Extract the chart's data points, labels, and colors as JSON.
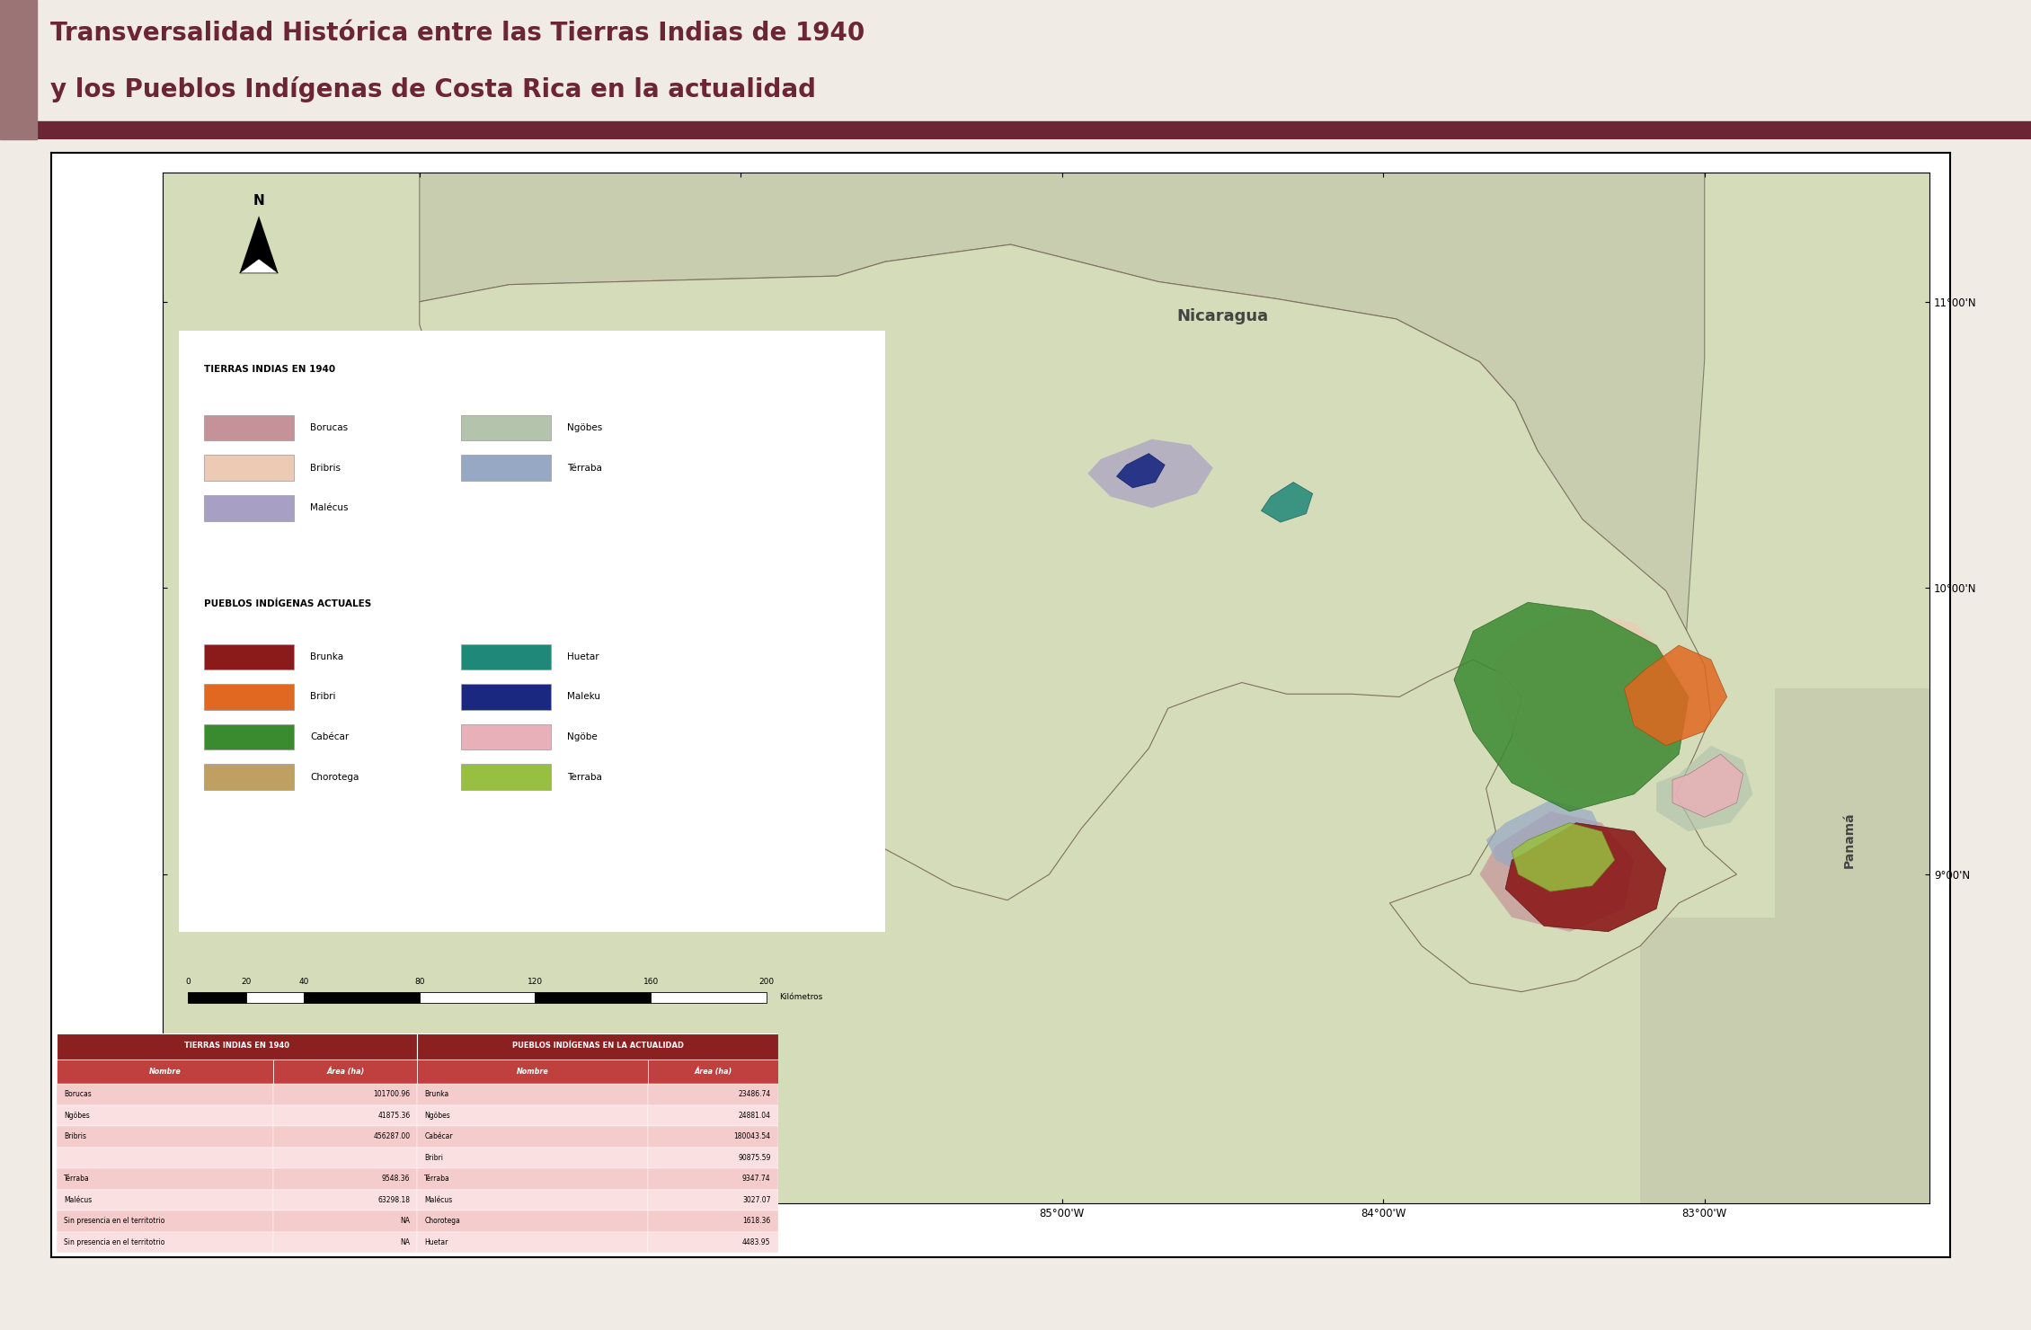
{
  "title_line1": "Transversalidad Histórica entre las Tierras Indias de 1940",
  "title_line2": "y los Pueblos Indígenas de Costa Rica en la actualidad",
  "title_color": "#6B2535",
  "title_bg_left_color": "#9B7575",
  "header_bar_color": "#6B2535",
  "page_bg": "#F0EBE5",
  "map_frame_bg": "white",
  "map_land_color": "#D5DCBA",
  "nicaragua_color": "#C8CDB0",
  "panama_color": "#C8CDB0",
  "ocean_color": "#C8D8E0",
  "tierras_indias_1940": {
    "title": "TIERRAS INDIAS EN 1940",
    "items": [
      {
        "label": "Borucas",
        "color": "#C49298"
      },
      {
        "label": "Bribris",
        "color": "#EDCAB4"
      },
      {
        "label": "Malécus",
        "color": "#A8A0C4"
      },
      {
        "label": "Ngöbes",
        "color": "#B4C4AC"
      },
      {
        "label": "Térraba",
        "color": "#96A8C4"
      }
    ]
  },
  "pueblos_indigenas_actuales": {
    "title": "PUEBLOS INDÍGENAS ACTUALES",
    "items": [
      {
        "label": "Brunka",
        "color": "#8B1A1A"
      },
      {
        "label": "Bribri",
        "color": "#E06820"
      },
      {
        "label": "Cabécar",
        "color": "#3A8A30"
      },
      {
        "label": "Chorotega",
        "color": "#C0A060"
      },
      {
        "label": "Huetar",
        "color": "#208878"
      },
      {
        "label": "Maleku",
        "color": "#1A2880"
      },
      {
        "label": "Ngöbe",
        "color": "#E8B0B8"
      },
      {
        "label": "Terraba",
        "color": "#98C040"
      }
    ]
  },
  "table": {
    "header_left": "TIERRAS INDIAS EN 1940",
    "header_right": "PUEBLOS INDÍGENAS EN LA ACTUALIDAD",
    "col_headers": [
      "Nombre",
      "Área (ha)",
      "Nombre",
      "Área (ha)"
    ],
    "rows": [
      [
        "Borucas",
        "101700.96",
        "Brunka",
        "23486.74"
      ],
      [
        "Ngöbes",
        "41875.36",
        "Ngöbes",
        "24881.04"
      ],
      [
        "Bribris",
        "456287.00",
        "Cabécar",
        "180043.54"
      ],
      [
        "",
        "",
        "Bribri",
        "90875.59"
      ],
      [
        "Térraba",
        "9548.36",
        "Térraba",
        "9347.74"
      ],
      [
        "Malécus",
        "63298.18",
        "Malécus",
        "3027.07"
      ],
      [
        "Sin presencia en el territotrio",
        "NA",
        "Chorotega",
        "1618.36"
      ],
      [
        "Sin presencia en el territotrio",
        "NA",
        "Huetar",
        "4483.95"
      ]
    ],
    "header_bg": "#8B2020",
    "subheader_bg": "#C04040",
    "row_bg_a": "#F5CCCC",
    "row_bg_b": "#FAE0E0"
  },
  "scale_km": [
    0,
    20,
    40,
    80,
    120,
    160,
    200
  ],
  "nicaragua_label": "Nicaragua",
  "panama_label": "Panamá"
}
